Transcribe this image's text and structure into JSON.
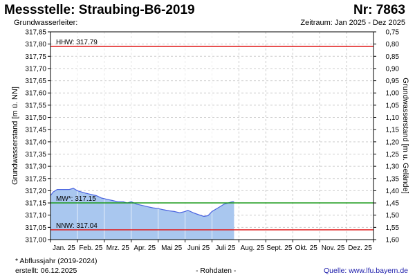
{
  "header": {
    "title": "Messstelle: Straubing-B6-2019",
    "nr": "Nr: 7863",
    "aquifer_label": "Grundwasserleiter:",
    "period": "Zeitraum: Jan 2025 - Dez 2025"
  },
  "footer": {
    "note": "* Abflussjahr (2019-2024)",
    "created": "erstellt:  06.12.2025",
    "raw": "- Rohdaten -",
    "source": "Quelle: www.lfu.bayern.de"
  },
  "chart_data": {
    "type": "area",
    "title": "",
    "ylabel": "Grundwasserstand [m ü. NN]",
    "y2label": "Grundwasserstand [m u. Gelände]",
    "ylim": [
      317.0,
      317.85
    ],
    "y_ticks": [
      "317,00",
      "317,05",
      "317,10",
      "317,15",
      "317,20",
      "317,25",
      "317,30",
      "317,35",
      "317,40",
      "317,45",
      "317,50",
      "317,55",
      "317,60",
      "317,65",
      "317,70",
      "317,75",
      "317,80",
      "317,85"
    ],
    "y2_ticks": [
      "1,60",
      "1,55",
      "1,50",
      "1,45",
      "1,40",
      "1,35",
      "1,30",
      "1,25",
      "1,20",
      "1,15",
      "1,10",
      "1,05",
      "1,00",
      "0,95",
      "0,90",
      "0,85",
      "0,80",
      "0,75"
    ],
    "categories": [
      "Jan. 25",
      "Feb. 25",
      "Mrz. 25",
      "Apr. 25",
      "Mai 25",
      "Juni 25",
      "Juli 25",
      "Aug. 25",
      "Sept. 25",
      "Okt. 25",
      "Nov. 25",
      "Dez. 25"
    ],
    "series": [
      {
        "values_x_months": [
          0.0,
          0.1,
          0.25,
          0.4,
          0.55,
          0.7,
          0.85,
          1.0,
          1.15,
          1.3,
          1.5,
          1.7,
          1.9,
          2.1,
          2.3,
          2.5,
          2.7,
          2.85,
          3.0,
          3.2,
          3.4,
          3.6,
          3.8,
          4.0,
          4.2,
          4.4,
          4.6,
          4.8,
          5.0,
          5.1,
          5.3,
          5.5,
          5.7,
          5.85,
          6.0,
          6.15,
          6.3,
          6.45,
          6.6,
          6.75,
          6.82
        ],
        "values_y": [
          317.18,
          317.195,
          317.205,
          317.205,
          317.205,
          317.205,
          317.21,
          317.2,
          317.195,
          317.19,
          317.185,
          317.18,
          317.17,
          317.165,
          317.16,
          317.155,
          317.155,
          317.15,
          317.155,
          317.145,
          317.14,
          317.135,
          317.13,
          317.127,
          317.122,
          317.118,
          317.115,
          317.11,
          317.115,
          317.12,
          317.11,
          317.102,
          317.095,
          317.098,
          317.115,
          317.125,
          317.135,
          317.145,
          317.15,
          317.155,
          317.155
        ],
        "color": "#4a63e0",
        "fill": "#a9c7ef"
      }
    ],
    "reference_lines": [
      {
        "label": "HHW: 317.79",
        "value": 317.79,
        "color": "#e02020"
      },
      {
        "label": "MW*: 317.15",
        "value": 317.15,
        "color": "#1a9a1a"
      },
      {
        "label": "NNW: 317.04",
        "value": 317.04,
        "color": "#e02020"
      }
    ],
    "grid": true
  }
}
